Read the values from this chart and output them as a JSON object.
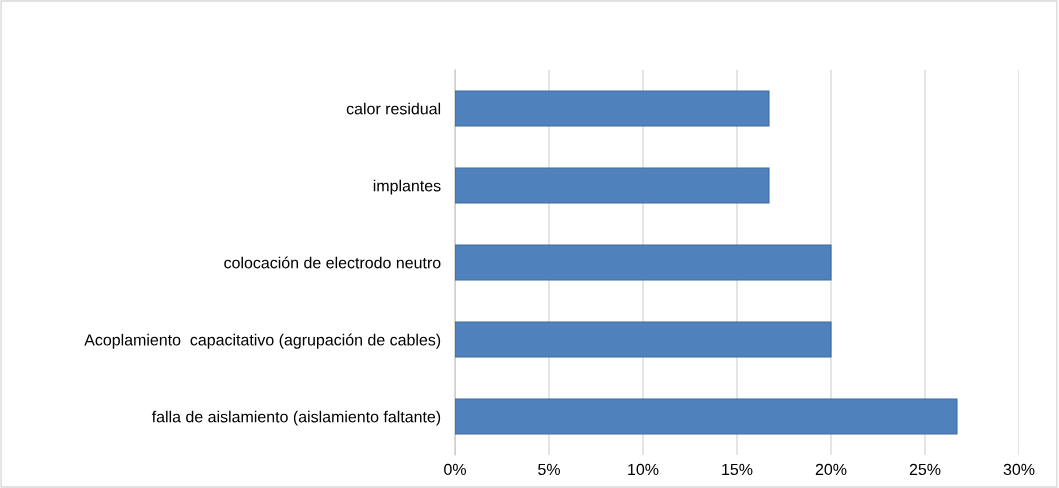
{
  "chart_data": {
    "type": "bar",
    "orientation": "horizontal",
    "categories": [
      "calor residual",
      "implantes",
      "colocación de electrodo neutro",
      "Acoplamiento  capacitativo (agrupación de cables)",
      "falla de aislamiento (aislamiento faltante)"
    ],
    "values": [
      16.7,
      16.7,
      20,
      20,
      26.7
    ],
    "color": "#4f81bd",
    "xlim": [
      0,
      30
    ],
    "xticks": [
      {
        "value": 0,
        "label": "0%"
      },
      {
        "value": 5,
        "label": "5%"
      },
      {
        "value": 10,
        "label": "10%"
      },
      {
        "value": 15,
        "label": "15%"
      },
      {
        "value": 20,
        "label": "20%"
      },
      {
        "value": 25,
        "label": "25%"
      },
      {
        "value": 30,
        "label": "30%"
      }
    ],
    "grid": "x",
    "legend": false
  }
}
